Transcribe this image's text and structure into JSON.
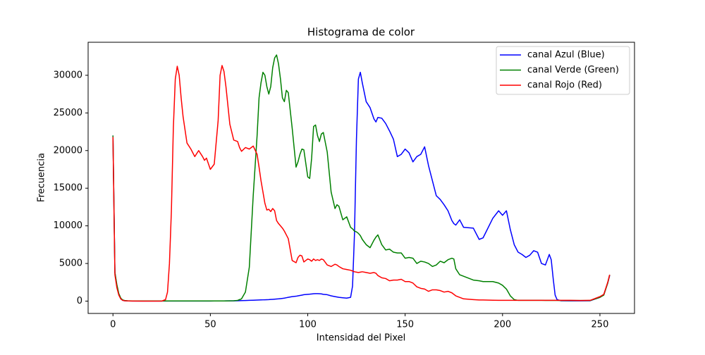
{
  "chart_data": {
    "type": "line",
    "title": "Histograma de color",
    "x_label": "Intensidad del Pixel",
    "y_label": "Frecuencia",
    "x": [
      0,
      1,
      2,
      3,
      4,
      5,
      6,
      8,
      10,
      15,
      20,
      25,
      27,
      28,
      29,
      30,
      31,
      32,
      33,
      34,
      35,
      36,
      38,
      40,
      42,
      44,
      46,
      47,
      48,
      50,
      52,
      54,
      55,
      56,
      57,
      58,
      60,
      62,
      64,
      65,
      66,
      68,
      70,
      72,
      74,
      75,
      76,
      77,
      78,
      79,
      80,
      81,
      82,
      83,
      84,
      85,
      86,
      87,
      88,
      89,
      90,
      92,
      94,
      95,
      96,
      97,
      98,
      100,
      101,
      102,
      103,
      104,
      105,
      106,
      107,
      108,
      110,
      112,
      114,
      115,
      116,
      118,
      120,
      122,
      123,
      124,
      125,
      126,
      127,
      128,
      130,
      132,
      134,
      135,
      136,
      138,
      140,
      142,
      144,
      146,
      148,
      150,
      152,
      154,
      156,
      158,
      160,
      162,
      164,
      166,
      168,
      170,
      172,
      174,
      175,
      176,
      178,
      180,
      185,
      188,
      190,
      195,
      198,
      200,
      202,
      204,
      206,
      208,
      210,
      212,
      214,
      216,
      218,
      220,
      222,
      224,
      225,
      226,
      227,
      228,
      230,
      235,
      240,
      245,
      250,
      252,
      254,
      255
    ],
    "series": [
      {
        "name": "canal Azul (Blue)",
        "color": "#0000ff",
        "values": [
          22000,
          3800,
          2000,
          900,
          300,
          100,
          50,
          20,
          10,
          10,
          10,
          10,
          10,
          10,
          10,
          10,
          10,
          10,
          10,
          10,
          10,
          10,
          10,
          10,
          10,
          10,
          10,
          10,
          10,
          10,
          20,
          20,
          20,
          20,
          20,
          30,
          30,
          40,
          50,
          60,
          70,
          80,
          100,
          120,
          140,
          150,
          160,
          170,
          180,
          190,
          200,
          220,
          240,
          260,
          280,
          300,
          330,
          360,
          400,
          450,
          500,
          600,
          650,
          700,
          750,
          800,
          850,
          900,
          920,
          950,
          980,
          1000,
          1000,
          980,
          960,
          900,
          850,
          700,
          600,
          550,
          500,
          450,
          400,
          500,
          2000,
          9000,
          21500,
          29500,
          30400,
          29000,
          26500,
          25700,
          24200,
          23800,
          24400,
          24300,
          23600,
          22600,
          21500,
          19200,
          19500,
          20200,
          19700,
          18500,
          19200,
          19500,
          20500,
          18000,
          16000,
          14000,
          13500,
          12800,
          12000,
          10700,
          10300,
          10100,
          10800,
          9800,
          9700,
          8200,
          8400,
          11000,
          12000,
          11400,
          12000,
          9500,
          7500,
          6500,
          6200,
          5800,
          6100,
          6700,
          6500,
          5000,
          4800,
          6200,
          5500,
          3000,
          800,
          200,
          50,
          40,
          30,
          50,
          500,
          900,
          2400,
          3400
        ]
      },
      {
        "name": "canal Verde (Green)",
        "color": "#008000",
        "values": [
          22000,
          3800,
          2200,
          1000,
          400,
          150,
          80,
          30,
          20,
          20,
          20,
          20,
          20,
          20,
          20,
          20,
          20,
          20,
          20,
          20,
          20,
          20,
          20,
          20,
          20,
          20,
          20,
          20,
          20,
          20,
          20,
          20,
          20,
          20,
          20,
          20,
          30,
          50,
          100,
          200,
          300,
          1200,
          4500,
          14000,
          22000,
          27000,
          29000,
          30400,
          30000,
          28500,
          27500,
          28500,
          31000,
          32300,
          32700,
          31500,
          29500,
          27000,
          26500,
          28000,
          27700,
          23000,
          17800,
          18500,
          19500,
          20200,
          20100,
          16500,
          16300,
          19000,
          23200,
          23400,
          22000,
          21200,
          22200,
          22400,
          19800,
          14500,
          12300,
          12800,
          12600,
          10800,
          11200,
          9800,
          9600,
          9300,
          9200,
          9000,
          8700,
          8200,
          7500,
          7100,
          8100,
          8500,
          8800,
          7500,
          6800,
          6900,
          6500,
          6400,
          6400,
          5700,
          5800,
          5700,
          5000,
          5300,
          5200,
          5000,
          4600,
          4800,
          5300,
          5100,
          5500,
          5700,
          5600,
          4300,
          3500,
          3300,
          2800,
          2700,
          2600,
          2600,
          2400,
          2100,
          1600,
          700,
          200,
          100,
          100,
          100,
          100,
          100,
          100,
          100,
          90,
          90,
          90,
          90,
          90,
          90,
          80,
          80,
          80,
          80,
          500,
          800,
          2400,
          3500
        ]
      },
      {
        "name": "canal Rojo (Red)",
        "color": "#ff0000",
        "values": [
          21800,
          3500,
          1800,
          800,
          300,
          100,
          50,
          20,
          10,
          0,
          0,
          0,
          200,
          1200,
          5000,
          12000,
          23000,
          29500,
          31200,
          30000,
          27000,
          24500,
          21000,
          20200,
          19200,
          20000,
          19200,
          18700,
          19000,
          17500,
          18200,
          24000,
          30000,
          31300,
          30500,
          28500,
          23500,
          21400,
          21200,
          20400,
          19900,
          20400,
          20200,
          20600,
          19500,
          17800,
          16000,
          14500,
          13000,
          12100,
          12200,
          11900,
          12300,
          12000,
          10700,
          10300,
          10000,
          9700,
          9300,
          8800,
          8300,
          5400,
          5100,
          5800,
          6100,
          6000,
          5200,
          5600,
          5500,
          5300,
          5600,
          5400,
          5500,
          5400,
          5600,
          5500,
          4800,
          4600,
          4900,
          4800,
          4600,
          4300,
          4200,
          4100,
          4000,
          3900,
          3850,
          3800,
          3850,
          3900,
          3800,
          3700,
          3800,
          3700,
          3400,
          3100,
          3000,
          2700,
          2800,
          2800,
          2900,
          2600,
          2600,
          2400,
          1900,
          1700,
          1600,
          1300,
          1500,
          1500,
          1400,
          1200,
          1300,
          1100,
          900,
          700,
          500,
          300,
          200,
          150,
          150,
          120,
          110,
          100,
          100,
          100,
          100,
          100,
          100,
          100,
          100,
          100,
          100,
          100,
          100,
          100,
          100,
          100,
          100,
          100,
          100,
          100,
          80,
          100,
          600,
          900,
          2500,
          3500
        ]
      }
    ],
    "xlim": [
      -12.75,
      267.75
    ],
    "ylim": [
      -1637,
      34387
    ],
    "xticks": [
      0,
      50,
      100,
      150,
      200,
      250
    ],
    "yticks": [
      0,
      5000,
      10000,
      15000,
      20000,
      25000,
      30000
    ],
    "grid": false,
    "legend": "upper right"
  }
}
